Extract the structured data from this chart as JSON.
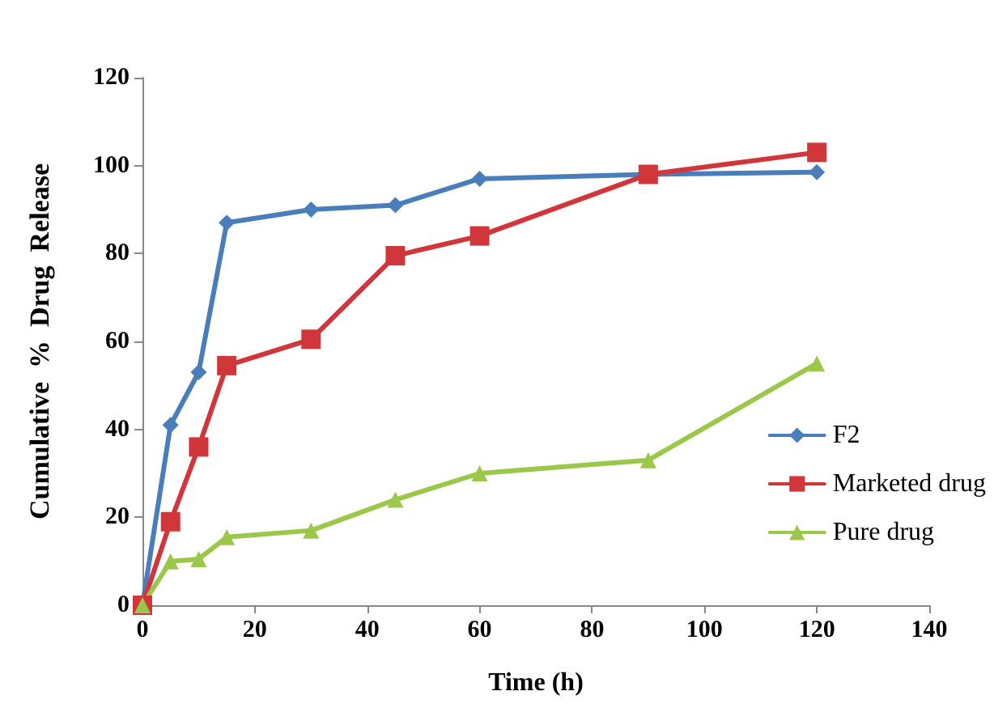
{
  "chart_data": {
    "type": "line",
    "xlabel": "Time (h)",
    "ylabel": "Cumulative  %  Drug  Release",
    "x": [
      0,
      5,
      10,
      15,
      30,
      45,
      60,
      90,
      120
    ],
    "series": [
      {
        "name": "F2",
        "color": "#4a7ebb",
        "marker": "diamond",
        "values": [
          0,
          41,
          53,
          87,
          90,
          91,
          97,
          98,
          98.5
        ]
      },
      {
        "name": "Marketed drug",
        "color": "#d0363a",
        "marker": "square",
        "values": [
          0,
          19,
          36,
          54.5,
          60.5,
          79.5,
          84,
          98,
          103
        ]
      },
      {
        "name": "Pure drug",
        "color": "#9bc84a",
        "marker": "triangle",
        "values": [
          0,
          10,
          10.5,
          15.5,
          17,
          24,
          30,
          33,
          55
        ]
      }
    ],
    "xlim": [
      0,
      140
    ],
    "xticks": [
      0,
      20,
      40,
      60,
      80,
      100,
      120,
      140
    ],
    "ylim": [
      0,
      120
    ],
    "yticks": [
      0,
      20,
      40,
      60,
      80,
      100,
      120
    ],
    "grid": false,
    "legend": "right",
    "line_style": "solid"
  }
}
